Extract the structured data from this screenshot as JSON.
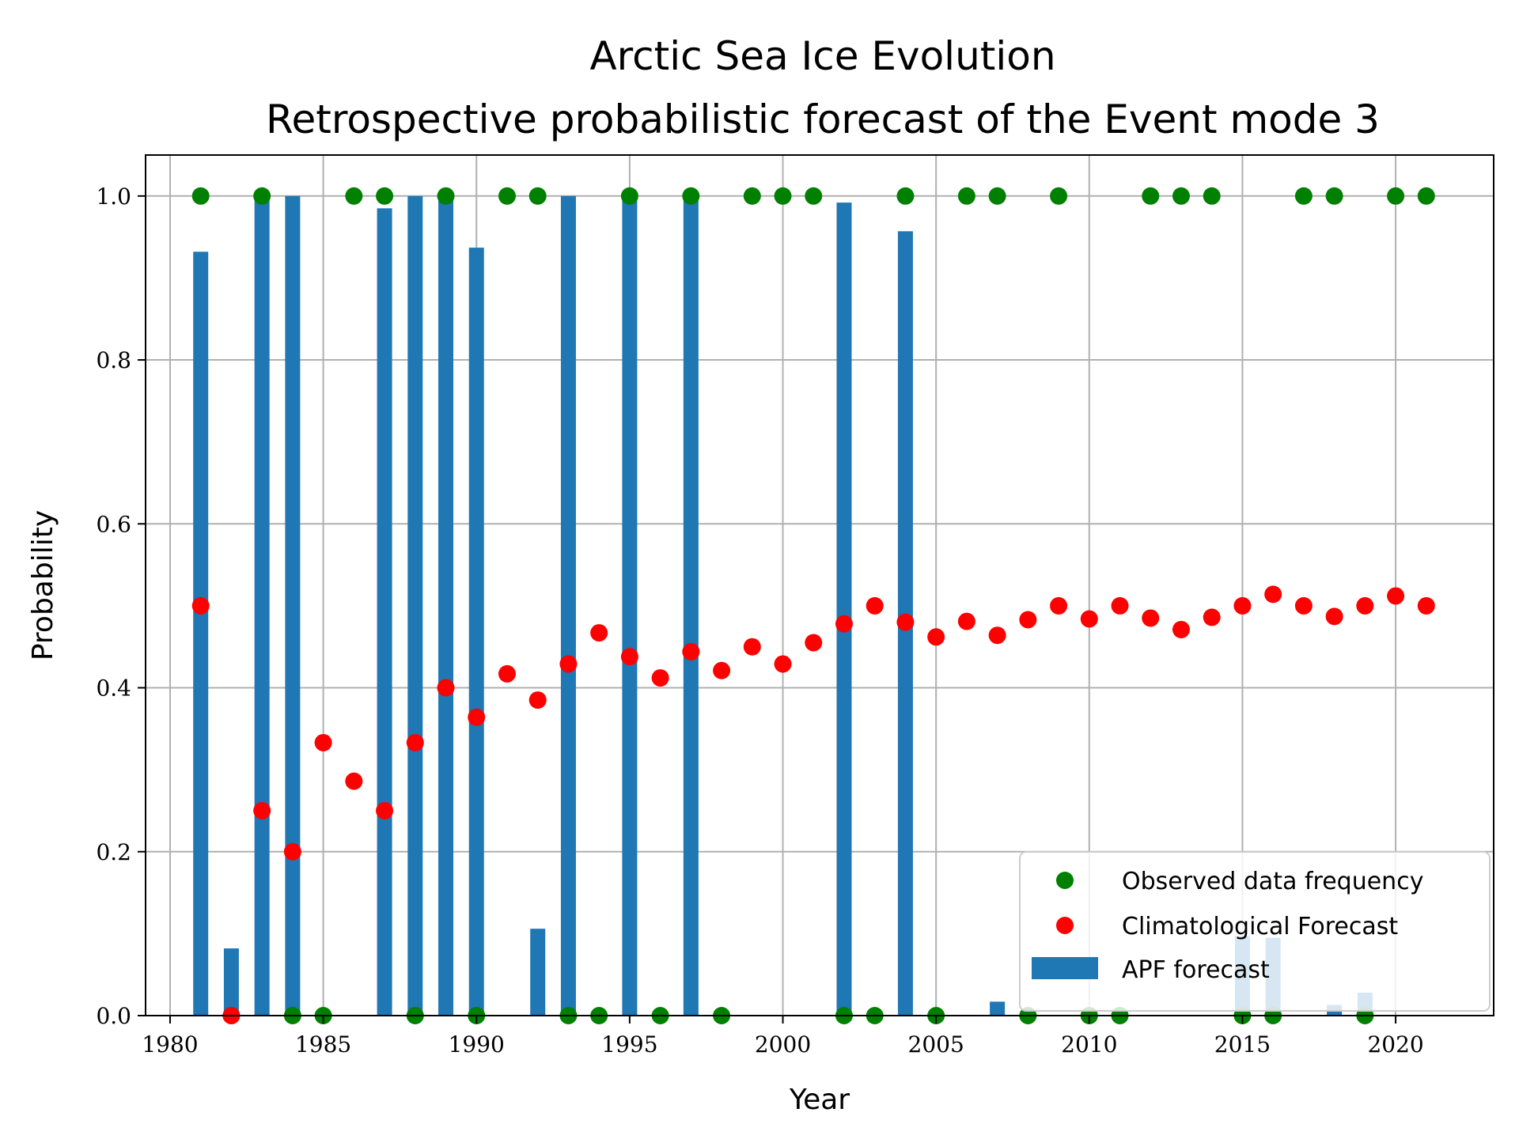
{
  "chart_data": {
    "type": "bar",
    "title_line1": "Arctic Sea Ice Evolution",
    "title_line2": "Retrospective probabilistic forecast of the Event mode 3",
    "xlabel": "Year",
    "ylabel": "Probability",
    "xlim": [
      1979.2,
      2023.2
    ],
    "ylim": [
      0.0,
      1.05
    ],
    "grid": true,
    "legend_position": "bottom-right",
    "x_ticks": [
      1980,
      1985,
      1990,
      1995,
      2000,
      2005,
      2010,
      2015,
      2020
    ],
    "x_tick_labels": [
      "1980",
      "1985",
      "1990",
      "1995",
      "2000",
      "2005",
      "2010",
      "2015",
      "2020"
    ],
    "y_ticks": [
      0.0,
      0.2,
      0.4,
      0.6,
      0.8,
      1.0
    ],
    "y_tick_labels": [
      "0.0",
      "0.2",
      "0.4",
      "0.6",
      "0.8",
      "1.0"
    ],
    "years": [
      1981,
      1982,
      1983,
      1984,
      1985,
      1986,
      1987,
      1988,
      1989,
      1990,
      1991,
      1992,
      1993,
      1994,
      1995,
      1996,
      1997,
      1998,
      1999,
      2000,
      2001,
      2002,
      2003,
      2004,
      2005,
      2006,
      2007,
      2008,
      2009,
      2010,
      2011,
      2012,
      2013,
      2014,
      2015,
      2016,
      2017,
      2018,
      2019,
      2020,
      2021
    ],
    "series": [
      {
        "name": "Observed data frequency",
        "kind": "scatter",
        "color": "#008000",
        "values": [
          1,
          0,
          1,
          0,
          0,
          1,
          1,
          0,
          1,
          0,
          1,
          1,
          0,
          0,
          1,
          0,
          1,
          0,
          1,
          1,
          1,
          0,
          0,
          1,
          0,
          1,
          1,
          0,
          1,
          0,
          0,
          1,
          1,
          1,
          0,
          0,
          1,
          1,
          0,
          1,
          1
        ]
      },
      {
        "name": "Climatological Forecast",
        "kind": "scatter",
        "color": "#ff0000",
        "values": [
          0.5,
          0.0,
          0.25,
          0.2,
          0.333,
          0.286,
          0.25,
          0.333,
          0.4,
          0.364,
          0.417,
          0.385,
          0.429,
          0.467,
          0.438,
          0.412,
          0.444,
          0.421,
          0.45,
          0.429,
          0.455,
          0.478,
          0.5,
          0.48,
          0.462,
          0.481,
          0.464,
          0.483,
          0.5,
          0.484,
          0.5,
          0.485,
          0.471,
          0.486,
          0.5,
          0.514,
          0.5,
          0.487,
          0.5,
          0.512,
          0.5
        ]
      },
      {
        "name": "APF forecast",
        "kind": "bar",
        "color": "#1f77b4",
        "values": [
          0.932,
          0.082,
          1.0,
          1.0,
          0.0,
          0.0,
          0.985,
          1.0,
          1.0,
          0.937,
          0.0,
          0.106,
          1.0,
          0.0,
          1.0,
          0.0,
          1.0,
          0.0,
          0.0,
          0.0,
          0.0,
          0.992,
          0.0,
          0.957,
          0.0,
          0.0,
          0.017,
          0.0,
          0.0,
          0.0,
          0.0,
          0.0,
          0.0,
          0.0,
          0.097,
          0.095,
          0.0,
          0.013,
          0.028,
          0.0,
          0.0
        ]
      }
    ]
  }
}
